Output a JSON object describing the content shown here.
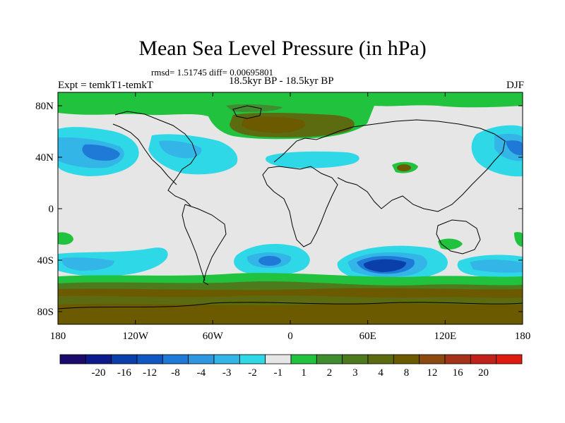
{
  "title": "Mean Sea Level Pressure (in hPa)",
  "stats_text": "rmsd= 1.51745 diff= 0.00695801",
  "period_text": "18.5kyr BP - 18.5kyr BP",
  "experiment_text": "Expt = temkT1-temkT",
  "season_text": "DJF",
  "lat_ticks": [
    "80N",
    "40N",
    "0",
    "40S",
    "80S"
  ],
  "lon_ticks": [
    "180",
    "120W",
    "60W",
    "0",
    "60E",
    "120E",
    "180"
  ],
  "colorbar": {
    "colors": [
      "#1b0a6b",
      "#0c1a8c",
      "#0a3ea8",
      "#1157c2",
      "#1f79d6",
      "#2e97e0",
      "#33b5e8",
      "#2fd8e6",
      "#e6e6e6",
      "#21c23e",
      "#3f8d2f",
      "#4c7a1c",
      "#5c6a10",
      "#6c5a00",
      "#8a4a10",
      "#a33218",
      "#c0211a",
      "#df1a10"
    ],
    "labels": [
      "-20",
      "-16",
      "-12",
      "-8",
      "-4",
      "-3",
      "-2",
      "-1",
      "1",
      "2",
      "3",
      "4",
      "8",
      "12",
      "16",
      "20"
    ]
  },
  "field_colors": {
    "neutral": "#e6e6e6",
    "pos_light": "#21c23e",
    "pos_mid": "#3f8d2f",
    "pos_dark": "#5c6a10",
    "pos_brown": "#6c5a00",
    "neg_1": "#2fd8e6",
    "neg_2": "#33b5e8",
    "neg_3": "#2e97e0",
    "neg_4": "#1f79d6",
    "neg_5": "#1157c2",
    "neg_6": "#0a3ea8"
  }
}
